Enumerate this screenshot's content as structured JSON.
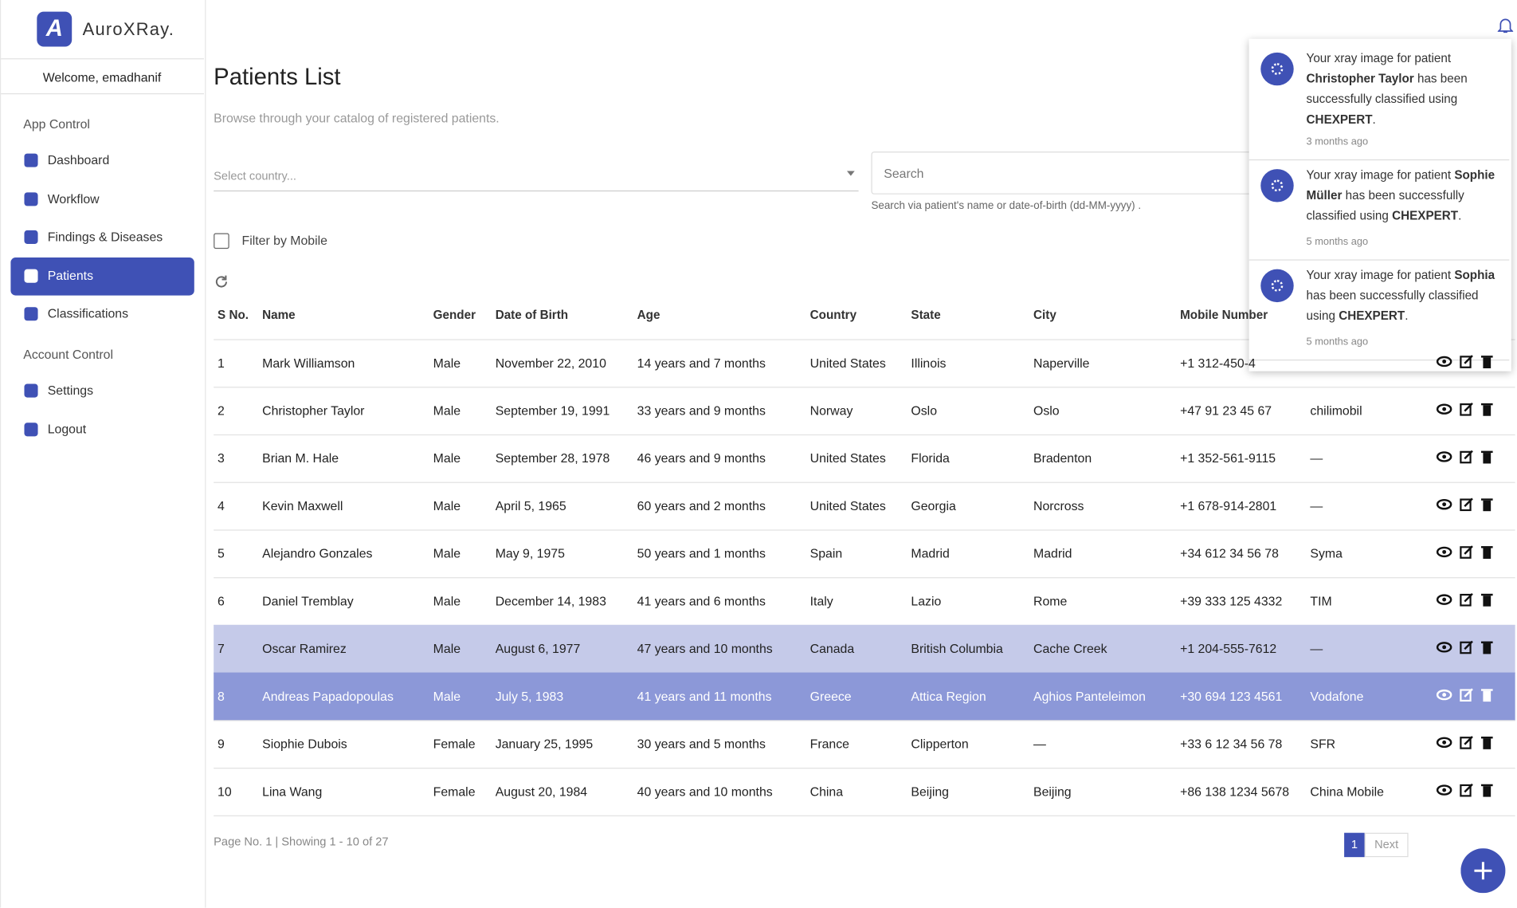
{
  "app": {
    "name": "AuroXRay.",
    "logo_letter": "A",
    "welcome": "Welcome, emadhanif"
  },
  "sidebar": {
    "sections": [
      {
        "title": "App Control",
        "items": [
          "Dashboard",
          "Workflow",
          "Findings & Diseases",
          "Patients",
          "Classifications"
        ]
      },
      {
        "title": "Account Control",
        "items": [
          "Settings",
          "Logout"
        ]
      }
    ]
  },
  "header": {
    "title": "Patients List",
    "subtitle": "Browse through your catalog of registered patients."
  },
  "filters": {
    "country_placeholder": "Select country...",
    "search_placeholder": "Search",
    "search_help": "Search via patient's name or date-of-birth (dd-MM-yyyy) .",
    "mobile_filter": "Filter by Mobile"
  },
  "table": {
    "columns": [
      "S No.",
      "Name",
      "Gender",
      "Date of Birth",
      "Age",
      "Country",
      "State",
      "City",
      "Mobile Number"
    ],
    "rows": [
      [
        1,
        "Mark Williamson",
        "Male",
        "November 22, 2010",
        "14 years and 7 months",
        "United States",
        "Illinois",
        "Naperville",
        "+1 312-450-4",
        null
      ],
      [
        2,
        "Christopher Taylor",
        "Male",
        "September 19, 1991",
        "33 years and 9 months",
        "Norway",
        "Oslo",
        "Oslo",
        "+47 91 23 45 67",
        "chilimobil"
      ],
      [
        3,
        "Brian M. Hale",
        "Male",
        "September 28, 1978",
        "46 years and 9 months",
        "United States",
        "Florida",
        "Bradenton",
        "+1 352-561-9115",
        "—"
      ],
      [
        4,
        "Kevin Maxwell",
        "Male",
        "April 5, 1965",
        "60 years and 2 months",
        "United States",
        "Georgia",
        "Norcross",
        "+1 678-914-2801",
        "—"
      ],
      [
        5,
        "Alejandro Gonzales",
        "Male",
        "May 9, 1975",
        "50 years and 1 months",
        "Spain",
        "Madrid",
        "Madrid",
        "+34 612 34 56 78",
        "Syma"
      ],
      [
        6,
        "Daniel Tremblay",
        "Male",
        "December 14, 1983",
        "41 years and 6 months",
        "Italy",
        "Lazio",
        "Rome",
        "+39 333 125 4332",
        "TIM"
      ],
      [
        7,
        "Oscar Ramirez",
        "Male",
        "August 6, 1977",
        "47 years and 10 months",
        "Canada",
        "British Columbia",
        "Cache Creek",
        "+1 204-555-7612",
        "—"
      ],
      [
        8,
        "Andreas Papadopoulas",
        "Male",
        "July 5, 1983",
        "41 years and 11 months",
        "Greece",
        "Attica Region",
        "Aghios Panteleimon",
        "+30 694 123 4561",
        "Vodafone"
      ],
      [
        9,
        "Siophie Dubois",
        "Female",
        "January 25, 1995",
        "30 years and 5 months",
        "France",
        "Clipperton",
        "—",
        "+33 6 12 34 56 78",
        "SFR"
      ],
      [
        10,
        "Lina Wang",
        "Female",
        "August 20, 1984",
        "40 years and 10 months",
        "China",
        "Beijing",
        "Beijing",
        "+86 138 1234 5678",
        "China Mobile"
      ]
    ]
  },
  "pagination": {
    "summary": "Page No. 1 | Showing 1 - 10 of 27",
    "current": "1",
    "next": "Next"
  },
  "notifications": [
    {
      "prefix": "Your xray image for patient ",
      "patient": "Christopher Taylor",
      "middle": " has been successfully classified using ",
      "model": "CHEXPERT",
      "suffix": ".",
      "time": "3 months ago"
    },
    {
      "prefix": "Your xray image for patient ",
      "patient": "Sophie Müller",
      "middle": " has been successfully classified using ",
      "model": "CHEXPERT",
      "suffix": ".",
      "time": "5 months ago"
    },
    {
      "prefix": "Your xray image for patient ",
      "patient": "Sophia",
      "middle": " has been successfully classified using ",
      "model": "CHEXPERT",
      "suffix": ".",
      "time": "5 months ago"
    }
  ]
}
